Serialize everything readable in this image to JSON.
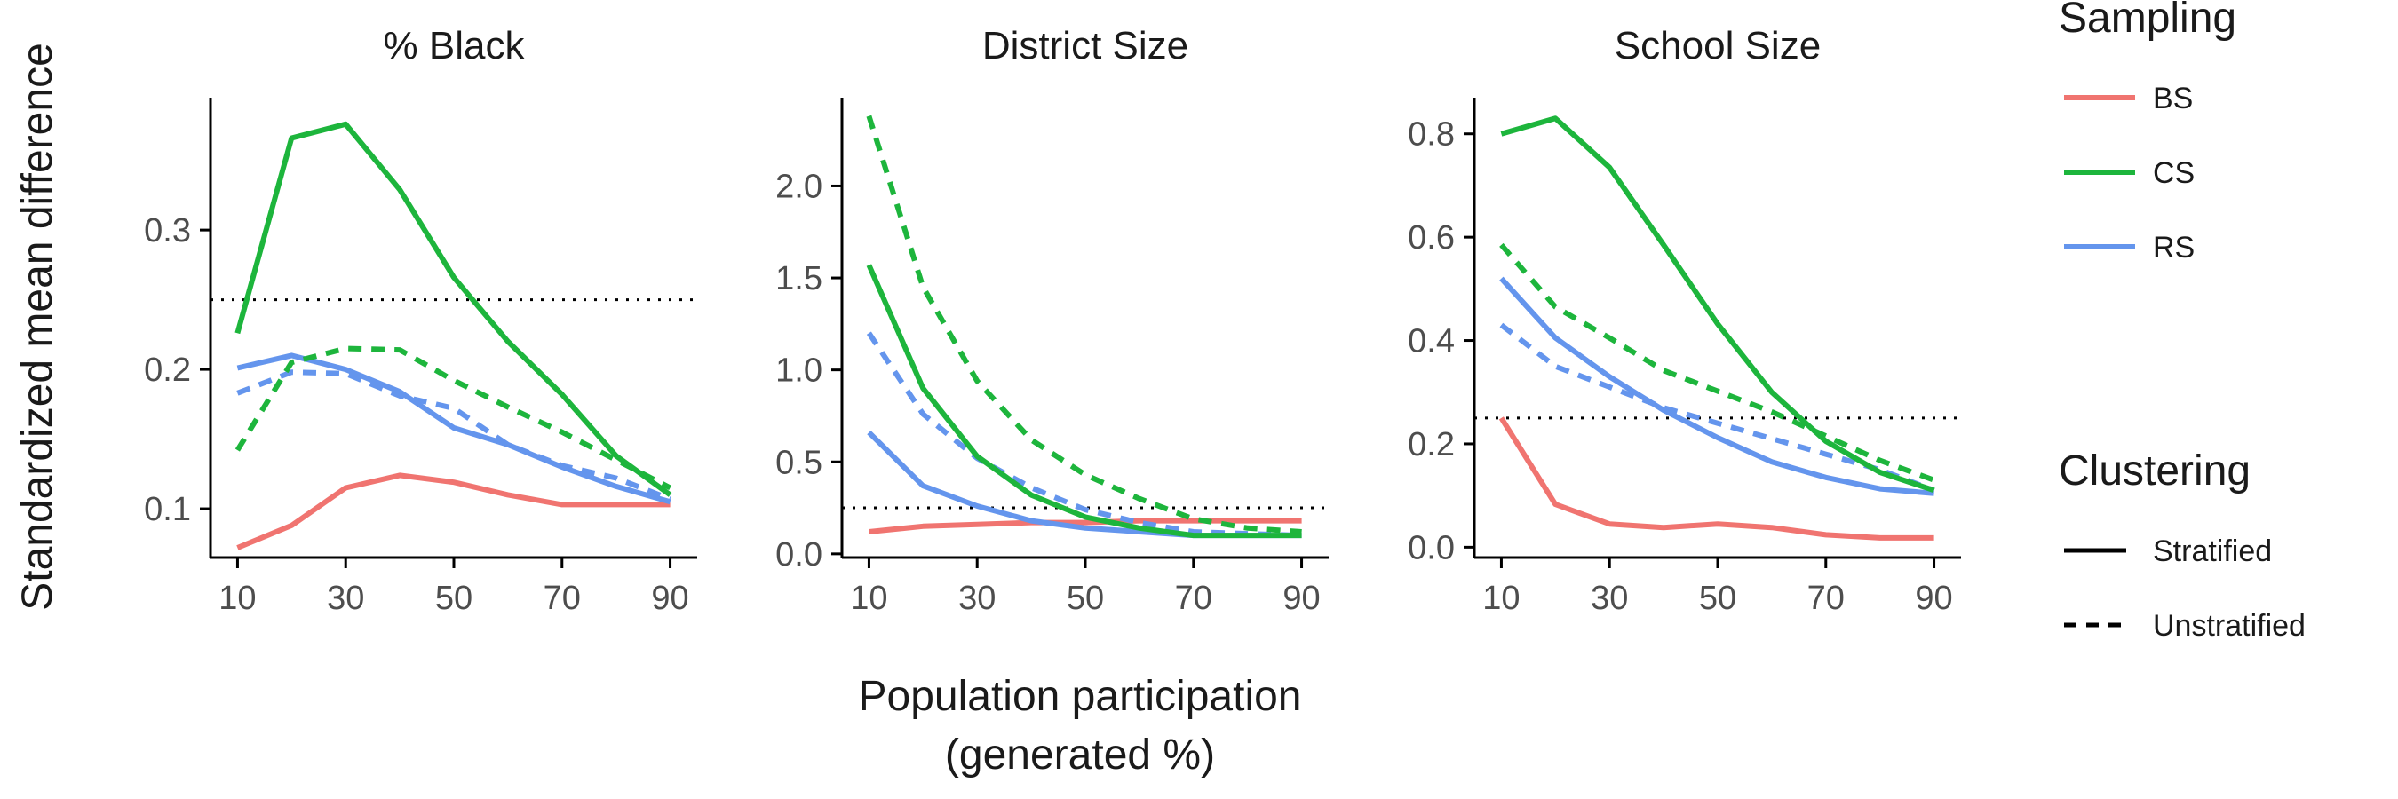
{
  "chart_data": {
    "type": "line",
    "ylabel": "Standardized mean difference",
    "xlabel_line1": "Population participation",
    "xlabel_line2": "(generated %)",
    "x": [
      10,
      20,
      30,
      40,
      50,
      60,
      70,
      80,
      90
    ],
    "xticks": [
      "10",
      "30",
      "50",
      "70",
      "90"
    ],
    "colors": {
      "BS": "#F07470",
      "CS": "#1DB53C",
      "RS": "#6495ED"
    },
    "reference_line": 0.25,
    "legend": {
      "sampling_title": "Sampling",
      "sampling_items": [
        "BS",
        "CS",
        "RS"
      ],
      "clustering_title": "Clustering",
      "clustering_items": [
        "Stratified",
        "Unstratified"
      ]
    },
    "panels": [
      {
        "title": "% Black",
        "ylim": [
          0.065,
          0.395
        ],
        "yticks": [
          0.1,
          0.2,
          0.3
        ],
        "ytick_labels": [
          "0.1",
          "0.2",
          "0.3"
        ],
        "series": [
          {
            "name": "BS",
            "clustering": "Stratified",
            "values": [
              0.072,
              0.088,
              0.115,
              0.124,
              0.119,
              0.11,
              0.103,
              0.103,
              0.103
            ]
          },
          {
            "name": "CS",
            "clustering": "Stratified",
            "values": [
              0.226,
              0.366,
              0.376,
              0.329,
              0.266,
              0.22,
              0.182,
              0.138,
              0.11
            ]
          },
          {
            "name": "CS",
            "clustering": "Unstratified",
            "values": [
              0.142,
              0.205,
              0.215,
              0.214,
              0.192,
              0.173,
              0.155,
              0.135,
              0.115
            ]
          },
          {
            "name": "RS",
            "clustering": "Stratified",
            "values": [
              0.201,
              0.21,
              0.2,
              0.184,
              0.158,
              0.146,
              0.13,
              0.116,
              0.105
            ]
          },
          {
            "name": "RS",
            "clustering": "Unstratified",
            "values": [
              0.183,
              0.198,
              0.197,
              0.181,
              0.172,
              0.146,
              0.131,
              0.122,
              0.107
            ]
          }
        ]
      },
      {
        "title": "District Size",
        "ylim": [
          -0.02,
          2.48
        ],
        "yticks": [
          0.0,
          0.5,
          1.0,
          1.5,
          2.0
        ],
        "ytick_labels": [
          "0.0",
          "0.5",
          "1.0",
          "1.5",
          "2.0"
        ],
        "series": [
          {
            "name": "BS",
            "clustering": "Stratified",
            "values": [
              0.12,
              0.15,
              0.16,
              0.17,
              0.17,
              0.18,
              0.18,
              0.18,
              0.18
            ]
          },
          {
            "name": "CS",
            "clustering": "Stratified",
            "values": [
              1.57,
              0.9,
              0.53,
              0.32,
              0.2,
              0.14,
              0.1,
              0.1,
              0.1
            ]
          },
          {
            "name": "CS",
            "clustering": "Unstratified",
            "values": [
              2.38,
              1.45,
              0.94,
              0.62,
              0.43,
              0.3,
              0.19,
              0.14,
              0.12
            ]
          },
          {
            "name": "RS",
            "clustering": "Stratified",
            "values": [
              0.66,
              0.37,
              0.26,
              0.18,
              0.14,
              0.12,
              0.1,
              0.1,
              0.1
            ]
          },
          {
            "name": "RS",
            "clustering": "Unstratified",
            "values": [
              1.2,
              0.76,
              0.52,
              0.36,
              0.24,
              0.17,
              0.12,
              0.11,
              0.1
            ]
          }
        ]
      },
      {
        "title": "School Size",
        "ylim": [
          -0.02,
          0.87
        ],
        "yticks": [
          0.0,
          0.2,
          0.4,
          0.6,
          0.8
        ],
        "ytick_labels": [
          "0.0",
          "0.2",
          "0.4",
          "0.6",
          "0.8"
        ],
        "series": [
          {
            "name": "BS",
            "clustering": "Stratified",
            "values": [
              0.25,
              0.083,
              0.045,
              0.038,
              0.045,
              0.038,
              0.024,
              0.018,
              0.018
            ]
          },
          {
            "name": "CS",
            "clustering": "Stratified",
            "values": [
              0.8,
              0.83,
              0.735,
              0.585,
              0.432,
              0.3,
              0.205,
              0.145,
              0.11
            ]
          },
          {
            "name": "CS",
            "clustering": "Unstratified",
            "values": [
              0.585,
              0.465,
              0.405,
              0.342,
              0.302,
              0.262,
              0.215,
              0.168,
              0.13
            ]
          },
          {
            "name": "RS",
            "clustering": "Stratified",
            "values": [
              0.52,
              0.405,
              0.33,
              0.265,
              0.212,
              0.165,
              0.135,
              0.113,
              0.104
            ]
          },
          {
            "name": "RS",
            "clustering": "Unstratified",
            "values": [
              0.43,
              0.35,
              0.31,
              0.27,
              0.24,
              0.21,
              0.18,
              0.15,
              0.11
            ]
          }
        ]
      }
    ]
  }
}
